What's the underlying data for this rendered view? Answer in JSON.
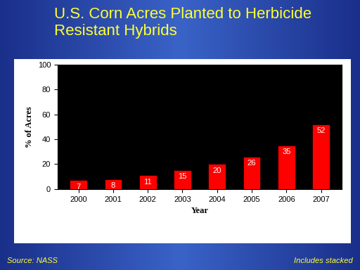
{
  "chart_data": {
    "type": "bar",
    "title": "U.S. Corn Acres Planted to Herbicide Resistant Hybrids",
    "x_label": "Year",
    "y_label": "% of Acres",
    "categories": [
      "2000",
      "2001",
      "2002",
      "2003",
      "2004",
      "2005",
      "2006",
      "2007"
    ],
    "values": [
      7,
      8,
      11,
      15,
      20,
      26,
      35,
      52
    ],
    "color": "#ff0000",
    "ylim": [
      0,
      100
    ],
    "yticks": [
      0,
      20,
      40,
      60,
      80,
      100
    ],
    "grid": false,
    "data_labels": true,
    "annotations": [
      "Source: NASS",
      "Includes stacked"
    ]
  }
}
